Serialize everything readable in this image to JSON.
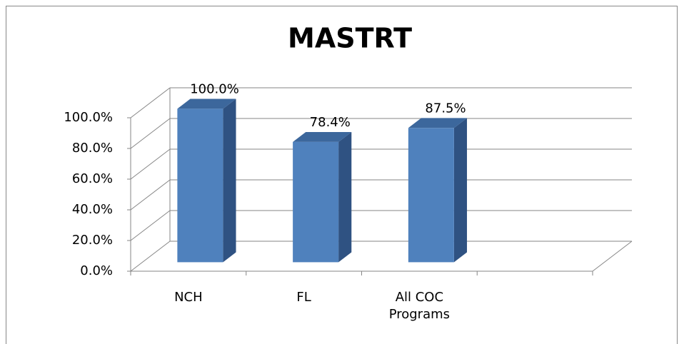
{
  "chart_data": {
    "type": "bar3d",
    "title": "MASTRT",
    "categories": [
      "NCH",
      "FL",
      "All COC Programs",
      null
    ],
    "values": [
      100,
      78.4,
      87.5,
      null
    ],
    "value_labels": [
      "100.0%",
      "78.4%",
      "87.5%",
      null
    ],
    "color": "#4f81bd",
    "ylim": [
      0,
      100
    ],
    "yticks": [
      {
        "value": 0,
        "label": "0.0%"
      },
      {
        "value": 20,
        "label": "20.0%"
      },
      {
        "value": 40,
        "label": "40.0%"
      },
      {
        "value": 60,
        "label": "60.0%"
      },
      {
        "value": 80,
        "label": "80.0%"
      },
      {
        "value": 100,
        "label": "100.0%"
      }
    ],
    "grid": true
  }
}
